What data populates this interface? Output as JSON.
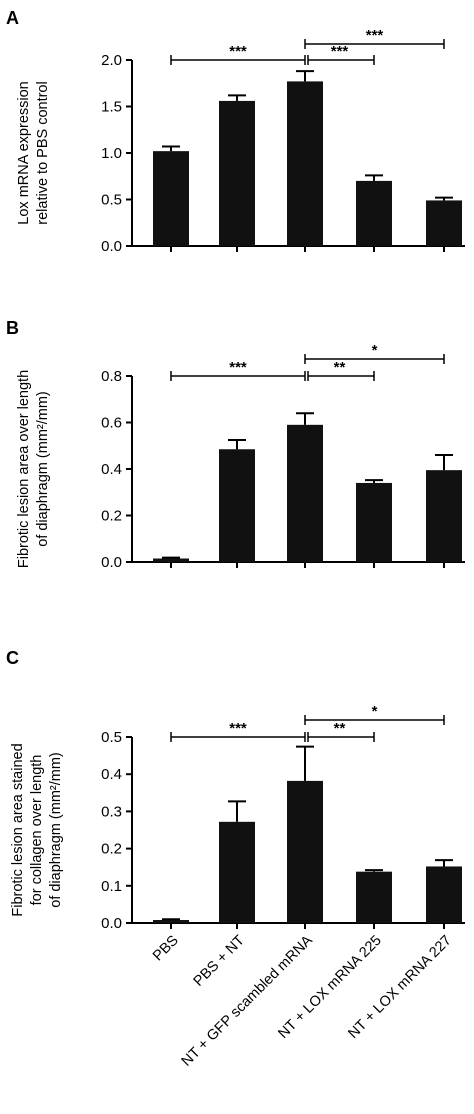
{
  "chart_data": [
    {
      "type": "bar",
      "panel": "A",
      "categories": [
        "PBS",
        "PBS + NT",
        "NT + GFP scambled mRNA",
        "NT + LOX mRNA 225",
        "NT + LOX mRNA 227"
      ],
      "values": [
        1.02,
        1.56,
        1.77,
        0.7,
        0.49
      ],
      "errors": [
        0.05,
        0.06,
        0.11,
        0.06,
        0.03
      ],
      "ylabel_lines": [
        "Lox mRNA expression",
        "relative to PBS control"
      ],
      "ylim": [
        0,
        2.0
      ],
      "yticks": [
        0.0,
        0.5,
        1.0,
        1.5,
        2.0
      ],
      "ytick_labels": [
        "0.0",
        "0.5",
        "1.0",
        "1.5",
        "2.0"
      ],
      "show_category_labels": false,
      "significance": [
        {
          "from": 0,
          "to": 2,
          "label": "***",
          "level": 0
        },
        {
          "from": 2,
          "to": 3,
          "label": "***",
          "level": 0
        },
        {
          "from": 2,
          "to": 4,
          "label": "***",
          "level": 1
        }
      ]
    },
    {
      "type": "bar",
      "panel": "B",
      "categories": [
        "PBS",
        "PBS + NT",
        "NT + GFP scambled mRNA",
        "NT + LOX mRNA 225",
        "NT + LOX mRNA 227"
      ],
      "values": [
        0.015,
        0.485,
        0.59,
        0.34,
        0.395
      ],
      "errors": [
        0.004,
        0.04,
        0.05,
        0.012,
        0.065
      ],
      "ylabel_lines": [
        "Fibrotic lesion area over length",
        "of diaphragm (mm²/mm)"
      ],
      "ylim": [
        0,
        0.8
      ],
      "yticks": [
        0.0,
        0.2,
        0.4,
        0.6,
        0.8
      ],
      "ytick_labels": [
        "0.0",
        "0.2",
        "0.4",
        "0.6",
        "0.8"
      ],
      "show_category_labels": false,
      "significance": [
        {
          "from": 0,
          "to": 2,
          "label": "***",
          "level": 0
        },
        {
          "from": 2,
          "to": 3,
          "label": "**",
          "level": 0
        },
        {
          "from": 2,
          "to": 4,
          "label": "*",
          "level": 1
        }
      ]
    },
    {
      "type": "bar",
      "panel": "C",
      "categories": [
        "PBS",
        "PBS + NT",
        "NT + GFP scambled mRNA",
        "NT + LOX mRNA 225",
        "NT + LOX mRNA 227"
      ],
      "values": [
        0.008,
        0.272,
        0.382,
        0.138,
        0.152
      ],
      "errors": [
        0.002,
        0.055,
        0.092,
        0.004,
        0.017
      ],
      "ylabel_lines": [
        "Fibrotic lesion area stained",
        "for collagen over length",
        "of diaphragm (mm²/mm)"
      ],
      "ylim": [
        0,
        0.5
      ],
      "yticks": [
        0.0,
        0.1,
        0.2,
        0.3,
        0.4,
        0.5
      ],
      "ytick_labels": [
        "0.0",
        "0.1",
        "0.2",
        "0.3",
        "0.4",
        "0.5"
      ],
      "show_category_labels": true,
      "significance": [
        {
          "from": 0,
          "to": 2,
          "label": "***",
          "level": 0
        },
        {
          "from": 2,
          "to": 3,
          "label": "**",
          "level": 0
        },
        {
          "from": 2,
          "to": 4,
          "label": "*",
          "level": 1
        }
      ]
    }
  ],
  "colors": {
    "bar": "#111111",
    "axis": "#000000"
  }
}
